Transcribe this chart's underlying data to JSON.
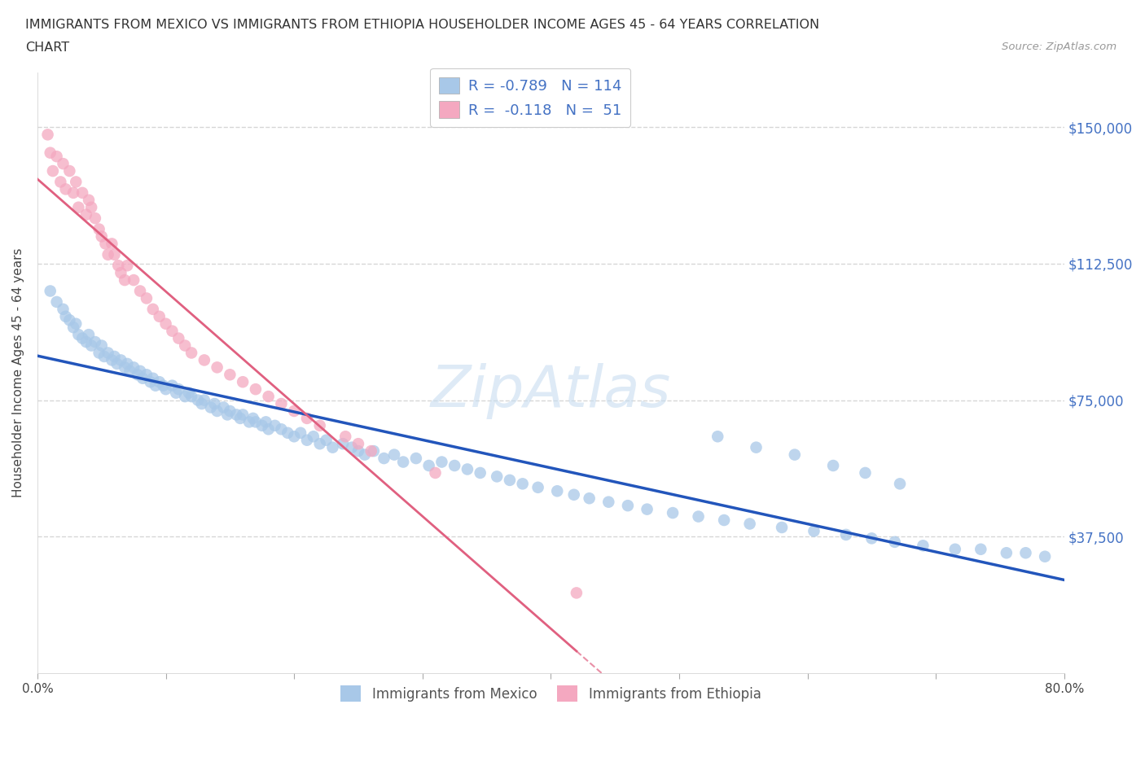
{
  "title_line1": "IMMIGRANTS FROM MEXICO VS IMMIGRANTS FROM ETHIOPIA HOUSEHOLDER INCOME AGES 45 - 64 YEARS CORRELATION",
  "title_line2": "CHART",
  "source": "Source: ZipAtlas.com",
  "ylabel": "Householder Income Ages 45 - 64 years",
  "xlim": [
    0.0,
    0.8
  ],
  "ylim": [
    0,
    165000
  ],
  "yticks": [
    0,
    37500,
    75000,
    112500,
    150000
  ],
  "ytick_labels": [
    "",
    "$37,500",
    "$75,000",
    "$112,500",
    "$150,000"
  ],
  "xticks": [
    0.0,
    0.1,
    0.2,
    0.3,
    0.4,
    0.5,
    0.6,
    0.7,
    0.8
  ],
  "mexico_color": "#a8c8e8",
  "ethiopia_color": "#f4a8c0",
  "mexico_line_color": "#2255bb",
  "ethiopia_line_color": "#e06080",
  "mexico_R": -0.789,
  "mexico_N": 114,
  "ethiopia_R": -0.118,
  "ethiopia_N": 51,
  "background_color": "#ffffff",
  "grid_color": "#cccccc",
  "watermark_color": "#c8ddf0",
  "label_color": "#4472c4",
  "mexico_x": [
    0.01,
    0.015,
    0.02,
    0.022,
    0.025,
    0.028,
    0.03,
    0.032,
    0.035,
    0.038,
    0.04,
    0.042,
    0.045,
    0.048,
    0.05,
    0.052,
    0.055,
    0.058,
    0.06,
    0.062,
    0.065,
    0.068,
    0.07,
    0.072,
    0.075,
    0.078,
    0.08,
    0.082,
    0.085,
    0.088,
    0.09,
    0.092,
    0.095,
    0.098,
    0.1,
    0.105,
    0.108,
    0.11,
    0.115,
    0.118,
    0.12,
    0.125,
    0.128,
    0.13,
    0.135,
    0.138,
    0.14,
    0.145,
    0.148,
    0.15,
    0.155,
    0.158,
    0.16,
    0.165,
    0.168,
    0.17,
    0.175,
    0.178,
    0.18,
    0.185,
    0.19,
    0.195,
    0.2,
    0.205,
    0.21,
    0.215,
    0.22,
    0.225,
    0.23,
    0.238,
    0.245,
    0.25,
    0.255,
    0.262,
    0.27,
    0.278,
    0.285,
    0.295,
    0.305,
    0.315,
    0.325,
    0.335,
    0.345,
    0.358,
    0.368,
    0.378,
    0.39,
    0.405,
    0.418,
    0.43,
    0.445,
    0.46,
    0.475,
    0.495,
    0.515,
    0.535,
    0.555,
    0.58,
    0.605,
    0.63,
    0.65,
    0.668,
    0.69,
    0.715,
    0.735,
    0.755,
    0.77,
    0.785,
    0.53,
    0.56,
    0.59,
    0.62,
    0.645,
    0.672
  ],
  "mexico_y": [
    105000,
    102000,
    100000,
    98000,
    97000,
    95000,
    96000,
    93000,
    92000,
    91000,
    93000,
    90000,
    91000,
    88000,
    90000,
    87000,
    88000,
    86000,
    87000,
    85000,
    86000,
    84000,
    85000,
    83000,
    84000,
    82000,
    83000,
    81000,
    82000,
    80000,
    81000,
    79000,
    80000,
    79000,
    78000,
    79000,
    77000,
    78000,
    76000,
    77000,
    76000,
    75000,
    74000,
    75000,
    73000,
    74000,
    72000,
    73000,
    71000,
    72000,
    71000,
    70000,
    71000,
    69000,
    70000,
    69000,
    68000,
    69000,
    67000,
    68000,
    67000,
    66000,
    65000,
    66000,
    64000,
    65000,
    63000,
    64000,
    62000,
    63000,
    62000,
    61000,
    60000,
    61000,
    59000,
    60000,
    58000,
    59000,
    57000,
    58000,
    57000,
    56000,
    55000,
    54000,
    53000,
    52000,
    51000,
    50000,
    49000,
    48000,
    47000,
    46000,
    45000,
    44000,
    43000,
    42000,
    41000,
    40000,
    39000,
    38000,
    37000,
    36000,
    35000,
    34000,
    34000,
    33000,
    33000,
    32000,
    65000,
    62000,
    60000,
    57000,
    55000,
    52000
  ],
  "ethiopia_x": [
    0.008,
    0.01,
    0.012,
    0.015,
    0.018,
    0.02,
    0.022,
    0.025,
    0.028,
    0.03,
    0.032,
    0.035,
    0.038,
    0.04,
    0.042,
    0.045,
    0.048,
    0.05,
    0.053,
    0.055,
    0.058,
    0.06,
    0.063,
    0.065,
    0.068,
    0.07,
    0.075,
    0.08,
    0.085,
    0.09,
    0.095,
    0.1,
    0.105,
    0.11,
    0.115,
    0.12,
    0.13,
    0.14,
    0.15,
    0.16,
    0.17,
    0.18,
    0.19,
    0.2,
    0.21,
    0.22,
    0.24,
    0.25,
    0.26,
    0.31,
    0.42
  ],
  "ethiopia_y": [
    148000,
    143000,
    138000,
    142000,
    135000,
    140000,
    133000,
    138000,
    132000,
    135000,
    128000,
    132000,
    126000,
    130000,
    128000,
    125000,
    122000,
    120000,
    118000,
    115000,
    118000,
    115000,
    112000,
    110000,
    108000,
    112000,
    108000,
    105000,
    103000,
    100000,
    98000,
    96000,
    94000,
    92000,
    90000,
    88000,
    86000,
    84000,
    82000,
    80000,
    78000,
    76000,
    74000,
    72000,
    70000,
    68000,
    65000,
    63000,
    61000,
    55000,
    22000
  ]
}
